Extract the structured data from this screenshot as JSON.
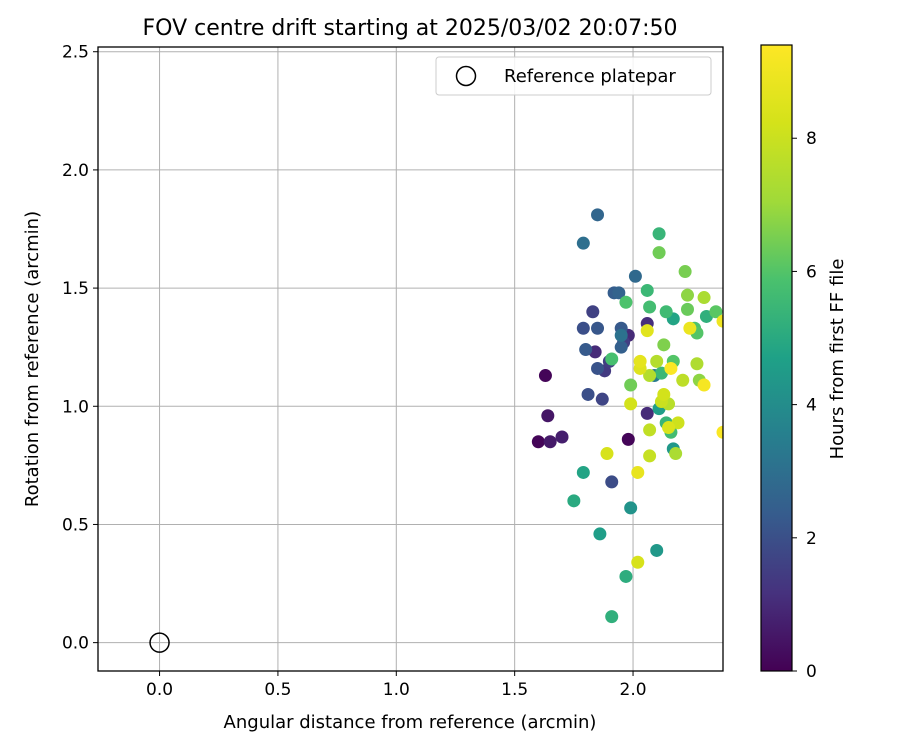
{
  "chart_data": {
    "type": "scatter",
    "title": "FOV centre drift starting at 2025/03/02 20:07:50",
    "xlabel": "Angular distance from reference (arcmin)",
    "ylabel": "Rotation from reference (arcmin)",
    "xlim": [
      -0.26,
      2.38
    ],
    "ylim": [
      -0.12,
      2.52
    ],
    "xticks": [
      "0.0",
      "0.5",
      "1.0",
      "1.5",
      "2.0"
    ],
    "yticks": [
      "0.0",
      "0.5",
      "1.0",
      "1.5",
      "2.0",
      "2.5"
    ],
    "grid": true,
    "legend": {
      "position": "top-right",
      "entries": [
        "Reference platepar"
      ]
    },
    "reference_point": {
      "x": 0.0,
      "y": 0.0,
      "label": "Reference platepar"
    },
    "colorbar": {
      "label": "Hours from first FF file",
      "range": [
        0,
        9.4
      ],
      "ticks": [
        "0",
        "2",
        "4",
        "6",
        "8"
      ],
      "colormap": "viridis"
    },
    "points": [
      {
        "x": 1.6,
        "y": 0.85,
        "h": 0.1
      },
      {
        "x": 1.63,
        "y": 1.13,
        "h": 0.1
      },
      {
        "x": 1.98,
        "y": 0.86,
        "h": 0.1
      },
      {
        "x": 1.64,
        "y": 0.96,
        "h": 0.5
      },
      {
        "x": 1.65,
        "y": 0.85,
        "h": 0.6
      },
      {
        "x": 1.7,
        "y": 0.87,
        "h": 0.7
      },
      {
        "x": 1.84,
        "y": 1.23,
        "h": 1.0
      },
      {
        "x": 1.98,
        "y": 1.3,
        "h": 1.0
      },
      {
        "x": 2.06,
        "y": 0.97,
        "h": 1.0
      },
      {
        "x": 2.06,
        "y": 1.35,
        "h": 1.1
      },
      {
        "x": 1.88,
        "y": 1.15,
        "h": 1.4
      },
      {
        "x": 1.9,
        "y": 1.19,
        "h": 1.5
      },
      {
        "x": 1.96,
        "y": 1.27,
        "h": 1.5
      },
      {
        "x": 1.83,
        "y": 1.4,
        "h": 1.6
      },
      {
        "x": 1.87,
        "y": 1.03,
        "h": 1.7
      },
      {
        "x": 1.91,
        "y": 0.68,
        "h": 1.9
      },
      {
        "x": 1.79,
        "y": 1.33,
        "h": 2.0
      },
      {
        "x": 1.81,
        "y": 1.05,
        "h": 2.0
      },
      {
        "x": 1.85,
        "y": 1.16,
        "h": 2.1
      },
      {
        "x": 1.85,
        "y": 1.33,
        "h": 2.2
      },
      {
        "x": 1.8,
        "y": 1.24,
        "h": 2.3
      },
      {
        "x": 1.95,
        "y": 1.33,
        "h": 2.3
      },
      {
        "x": 1.92,
        "y": 1.48,
        "h": 2.4
      },
      {
        "x": 1.95,
        "y": 1.25,
        "h": 2.5
      },
      {
        "x": 1.94,
        "y": 1.48,
        "h": 2.6
      },
      {
        "x": 1.85,
        "y": 1.81,
        "h": 2.7
      },
      {
        "x": 2.01,
        "y": 1.55,
        "h": 2.8
      },
      {
        "x": 1.79,
        "y": 1.69,
        "h": 3.0
      },
      {
        "x": 1.95,
        "y": 1.3,
        "h": 3.1
      },
      {
        "x": 2.09,
        "y": 1.13,
        "h": 3.4
      },
      {
        "x": 1.99,
        "y": 0.57,
        "h": 4.2
      },
      {
        "x": 2.1,
        "y": 0.39,
        "h": 4.4
      },
      {
        "x": 2.17,
        "y": 0.82,
        "h": 4.4
      },
      {
        "x": 2.11,
        "y": 0.99,
        "h": 4.6
      },
      {
        "x": 1.86,
        "y": 0.46,
        "h": 4.6
      },
      {
        "x": 1.79,
        "y": 0.72,
        "h": 4.8
      },
      {
        "x": 2.17,
        "y": 1.37,
        "h": 4.8
      },
      {
        "x": 1.75,
        "y": 0.6,
        "h": 5.0
      },
      {
        "x": 1.97,
        "y": 0.28,
        "h": 5.1
      },
      {
        "x": 1.91,
        "y": 0.11,
        "h": 5.2
      },
      {
        "x": 2.31,
        "y": 1.38,
        "h": 5.2
      },
      {
        "x": 2.14,
        "y": 0.93,
        "h": 5.4
      },
      {
        "x": 2.11,
        "y": 1.73,
        "h": 5.4
      },
      {
        "x": 2.06,
        "y": 1.49,
        "h": 5.5
      },
      {
        "x": 2.12,
        "y": 1.14,
        "h": 5.5
      },
      {
        "x": 2.14,
        "y": 1.4,
        "h": 5.6
      },
      {
        "x": 2.07,
        "y": 1.42,
        "h": 5.7
      },
      {
        "x": 2.16,
        "y": 0.89,
        "h": 5.7
      },
      {
        "x": 1.91,
        "y": 1.2,
        "h": 5.8
      },
      {
        "x": 2.26,
        "y": 1.33,
        "h": 5.9
      },
      {
        "x": 1.97,
        "y": 1.44,
        "h": 5.9
      },
      {
        "x": 2.27,
        "y": 1.31,
        "h": 6.0
      },
      {
        "x": 2.17,
        "y": 1.19,
        "h": 6.0
      },
      {
        "x": 2.35,
        "y": 1.4,
        "h": 6.1
      },
      {
        "x": 2.23,
        "y": 1.41,
        "h": 6.3
      },
      {
        "x": 1.99,
        "y": 1.09,
        "h": 6.4
      },
      {
        "x": 2.11,
        "y": 1.65,
        "h": 6.4
      },
      {
        "x": 2.22,
        "y": 1.57,
        "h": 6.5
      },
      {
        "x": 2.13,
        "y": 1.26,
        "h": 6.6
      },
      {
        "x": 2.23,
        "y": 1.47,
        "h": 6.8
      },
      {
        "x": 2.28,
        "y": 1.11,
        "h": 6.8
      },
      {
        "x": 2.3,
        "y": 1.46,
        "h": 7.3
      },
      {
        "x": 2.18,
        "y": 0.8,
        "h": 7.3
      },
      {
        "x": 2.27,
        "y": 1.18,
        "h": 7.4
      },
      {
        "x": 2.07,
        "y": 1.13,
        "h": 7.5
      },
      {
        "x": 2.1,
        "y": 1.19,
        "h": 7.5
      },
      {
        "x": 2.15,
        "y": 1.01,
        "h": 7.6
      },
      {
        "x": 2.21,
        "y": 1.11,
        "h": 7.7
      },
      {
        "x": 2.07,
        "y": 0.9,
        "h": 7.8
      },
      {
        "x": 2.07,
        "y": 0.79,
        "h": 7.9
      },
      {
        "x": 2.12,
        "y": 1.02,
        "h": 8.0
      },
      {
        "x": 2.19,
        "y": 0.93,
        "h": 8.1
      },
      {
        "x": 1.99,
        "y": 1.01,
        "h": 8.2
      },
      {
        "x": 2.13,
        "y": 1.05,
        "h": 8.2
      },
      {
        "x": 1.89,
        "y": 0.8,
        "h": 8.3
      },
      {
        "x": 2.02,
        "y": 0.34,
        "h": 8.3
      },
      {
        "x": 2.15,
        "y": 0.91,
        "h": 8.4
      },
      {
        "x": 2.03,
        "y": 1.16,
        "h": 8.5
      },
      {
        "x": 2.06,
        "y": 1.32,
        "h": 8.6
      },
      {
        "x": 2.03,
        "y": 1.19,
        "h": 8.7
      },
      {
        "x": 2.02,
        "y": 0.72,
        "h": 8.8
      },
      {
        "x": 2.24,
        "y": 1.33,
        "h": 8.9
      },
      {
        "x": 2.38,
        "y": 1.36,
        "h": 9.0
      },
      {
        "x": 2.3,
        "y": 1.09,
        "h": 9.2
      },
      {
        "x": 2.16,
        "y": 1.16,
        "h": 9.3
      },
      {
        "x": 2.38,
        "y": 0.89,
        "h": 9.3
      }
    ]
  }
}
